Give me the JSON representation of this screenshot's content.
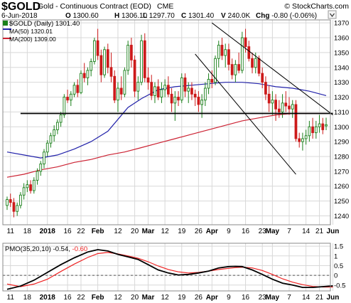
{
  "header": {
    "symbol": "$GOLD",
    "description": "Gold - Continuous Contract (EOD)",
    "exchange": "CME",
    "watermark": "© StockCharts.com",
    "date": "6-Jun-2018",
    "ohlc": [
      {
        "label": "O",
        "value": "1300.60"
      },
      {
        "label": "H",
        "value": "1306.10"
      },
      {
        "label": "L",
        "value": "1297.70"
      },
      {
        "label": "C",
        "value": "1301.40"
      },
      {
        "label": "V",
        "value": "240.0K"
      },
      {
        "label": "Chg",
        "value": "-0.80 (-0.06%)"
      }
    ],
    "dropdown_icon": "chevron-down-icon"
  },
  "legend": {
    "price": "$GOLD (Daily) 1301.40",
    "ma50": "MA(50) 1320.01",
    "ma200": "MA(200) 1309.00"
  },
  "pmo_legend": {
    "label": "PMO(35,20,10) -0.54, ",
    "value": "-0.60"
  },
  "colors": {
    "up_candle": "#1a7f1a",
    "down_candle": "#cc1a1a",
    "ma50": "#2222aa",
    "ma200": "#cc2233",
    "pmo": "#000000",
    "pmo_signal": "#ee2222",
    "grid": "#d8d8d8",
    "frame": "#888888",
    "channel": "#000000",
    "support": "#000000"
  },
  "chart_data": [
    {
      "type": "candlestick",
      "title": "$GOLD (Daily)",
      "ylim": [
        1234,
        1372
      ],
      "y_ticks": [
        1240,
        1250,
        1260,
        1270,
        1280,
        1290,
        1300,
        1310,
        1320,
        1330,
        1340,
        1350,
        1360,
        1370
      ],
      "x_ticks": [
        "11",
        "18",
        "2018",
        "16",
        "22",
        "Feb",
        "12",
        "20",
        "Mar",
        "12",
        "19",
        "26",
        "Apr",
        "9",
        "16",
        "23",
        "May",
        "7",
        "14",
        "21",
        "Jun"
      ],
      "bold_x_ticks": [
        "2018",
        "Feb",
        "Mar",
        "Apr",
        "May",
        "Jun"
      ],
      "grid": true,
      "candles": [
        [
          1247,
          1253,
          1244,
          1251
        ],
        [
          1251,
          1255,
          1246,
          1249
        ],
        [
          1249,
          1252,
          1239,
          1243
        ],
        [
          1243,
          1249,
          1240,
          1247
        ],
        [
          1247,
          1256,
          1245,
          1254
        ],
        [
          1254,
          1262,
          1251,
          1259
        ],
        [
          1259,
          1264,
          1256,
          1261
        ],
        [
          1261,
          1264,
          1255,
          1257
        ],
        [
          1257,
          1266,
          1255,
          1264
        ],
        [
          1264,
          1272,
          1261,
          1270
        ],
        [
          1270,
          1277,
          1267,
          1275
        ],
        [
          1275,
          1285,
          1272,
          1283
        ],
        [
          1283,
          1291,
          1280,
          1289
        ],
        [
          1289,
          1296,
          1286,
          1294
        ],
        [
          1294,
          1301,
          1290,
          1298
        ],
        [
          1298,
          1305,
          1295,
          1303
        ],
        [
          1303,
          1310,
          1300,
          1308
        ],
        [
          1308,
          1322,
          1306,
          1320
        ],
        [
          1320,
          1325,
          1316,
          1318
        ],
        [
          1318,
          1324,
          1314,
          1322
        ],
        [
          1322,
          1330,
          1320,
          1328
        ],
        [
          1328,
          1332,
          1320,
          1323
        ],
        [
          1323,
          1338,
          1322,
          1336
        ],
        [
          1336,
          1343,
          1330,
          1333
        ],
        [
          1333,
          1340,
          1328,
          1338
        ],
        [
          1338,
          1346,
          1334,
          1344
        ],
        [
          1344,
          1360,
          1342,
          1358
        ],
        [
          1358,
          1366,
          1345,
          1348
        ],
        [
          1348,
          1352,
          1330,
          1335
        ],
        [
          1335,
          1354,
          1333,
          1352
        ],
        [
          1352,
          1356,
          1336,
          1340
        ],
        [
          1340,
          1350,
          1330,
          1334
        ],
        [
          1334,
          1338,
          1316,
          1318
        ],
        [
          1318,
          1330,
          1310,
          1326
        ],
        [
          1326,
          1334,
          1318,
          1322
        ],
        [
          1322,
          1340,
          1320,
          1338
        ],
        [
          1338,
          1358,
          1335,
          1355
        ],
        [
          1355,
          1360,
          1340,
          1345
        ],
        [
          1345,
          1348,
          1320,
          1324
        ],
        [
          1324,
          1334,
          1318,
          1330
        ],
        [
          1330,
          1362,
          1328,
          1358
        ],
        [
          1358,
          1363,
          1330,
          1333
        ],
        [
          1333,
          1340,
          1325,
          1330
        ],
        [
          1330,
          1335,
          1318,
          1321
        ],
        [
          1321,
          1330,
          1316,
          1327
        ],
        [
          1327,
          1332,
          1318,
          1320
        ],
        [
          1320,
          1330,
          1316,
          1325
        ],
        [
          1325,
          1332,
          1320,
          1328
        ],
        [
          1328,
          1334,
          1320,
          1322
        ],
        [
          1322,
          1326,
          1310,
          1316
        ],
        [
          1316,
          1324,
          1304,
          1320
        ],
        [
          1320,
          1324,
          1314,
          1318
        ],
        [
          1318,
          1336,
          1316,
          1333
        ],
        [
          1333,
          1336,
          1320,
          1324
        ],
        [
          1324,
          1330,
          1316,
          1326
        ],
        [
          1326,
          1330,
          1318,
          1322
        ],
        [
          1322,
          1325,
          1314,
          1320
        ],
        [
          1320,
          1324,
          1310,
          1315
        ],
        [
          1315,
          1322,
          1306,
          1318
        ],
        [
          1318,
          1330,
          1314,
          1326
        ],
        [
          1326,
          1336,
          1322,
          1332
        ],
        [
          1332,
          1338,
          1326,
          1330
        ],
        [
          1330,
          1348,
          1328,
          1346
        ],
        [
          1346,
          1358,
          1340,
          1355
        ],
        [
          1355,
          1360,
          1345,
          1348
        ],
        [
          1348,
          1356,
          1340,
          1352
        ],
        [
          1352,
          1356,
          1338,
          1342
        ],
        [
          1342,
          1346,
          1332,
          1335
        ],
        [
          1335,
          1345,
          1330,
          1342
        ],
        [
          1342,
          1350,
          1336,
          1338
        ],
        [
          1338,
          1364,
          1336,
          1360
        ],
        [
          1360,
          1366,
          1350,
          1354
        ],
        [
          1354,
          1358,
          1344,
          1346
        ],
        [
          1346,
          1350,
          1336,
          1340
        ],
        [
          1340,
          1350,
          1336,
          1346
        ],
        [
          1346,
          1348,
          1334,
          1336
        ],
        [
          1336,
          1340,
          1326,
          1330
        ],
        [
          1330,
          1334,
          1318,
          1322
        ],
        [
          1322,
          1328,
          1310,
          1316
        ],
        [
          1316,
          1324,
          1308,
          1318
        ],
        [
          1318,
          1322,
          1304,
          1312
        ],
        [
          1312,
          1318,
          1306,
          1310
        ],
        [
          1310,
          1322,
          1306,
          1316
        ],
        [
          1316,
          1324,
          1310,
          1314
        ],
        [
          1314,
          1320,
          1308,
          1312
        ],
        [
          1312,
          1318,
          1306,
          1315
        ],
        [
          1315,
          1318,
          1290,
          1292
        ],
        [
          1292,
          1296,
          1286,
          1290
        ],
        [
          1290,
          1296,
          1284,
          1292
        ],
        [
          1292,
          1298,
          1288,
          1294
        ],
        [
          1294,
          1304,
          1290,
          1300
        ],
        [
          1300,
          1306,
          1292,
          1296
        ],
        [
          1296,
          1304,
          1292,
          1300
        ],
        [
          1300,
          1308,
          1296,
          1302
        ],
        [
          1302,
          1306,
          1295,
          1298
        ],
        [
          1300.6,
          1306.1,
          1297.7,
          1301.4
        ]
      ],
      "ma50": [
        [
          0,
          1283
        ],
        [
          5,
          1281
        ],
        [
          10,
          1279
        ],
        [
          15,
          1281
        ],
        [
          20,
          1285
        ],
        [
          25,
          1290
        ],
        [
          30,
          1297
        ],
        [
          33,
          1305
        ],
        [
          36,
          1313
        ],
        [
          40,
          1319
        ],
        [
          45,
          1325
        ],
        [
          50,
          1327
        ],
        [
          55,
          1328
        ],
        [
          60,
          1329
        ],
        [
          65,
          1330
        ],
        [
          70,
          1330
        ],
        [
          75,
          1329
        ],
        [
          80,
          1327
        ],
        [
          85,
          1326
        ],
        [
          90,
          1324
        ],
        [
          95,
          1321
        ]
      ],
      "ma200": [
        [
          0,
          1266
        ],
        [
          5,
          1268
        ],
        [
          10,
          1271
        ],
        [
          15,
          1273
        ],
        [
          20,
          1276
        ],
        [
          25,
          1278
        ],
        [
          30,
          1281
        ],
        [
          35,
          1283
        ],
        [
          40,
          1286
        ],
        [
          45,
          1289
        ],
        [
          50,
          1292
        ],
        [
          55,
          1295
        ],
        [
          60,
          1298
        ],
        [
          65,
          1301
        ],
        [
          70,
          1304
        ],
        [
          75,
          1306
        ],
        [
          80,
          1308
        ],
        [
          85,
          1309
        ],
        [
          90,
          1309
        ],
        [
          95,
          1309
        ]
      ],
      "support_line": {
        "from": [
          4,
          1309
        ],
        "to": [
          97,
          1309
        ]
      },
      "channel_upper": {
        "from": [
          61,
          1370
        ],
        "to": [
          97,
          1308
        ]
      },
      "channel_lower": {
        "from": [
          56,
          1349
        ],
        "to": [
          86,
          1268
        ]
      }
    },
    {
      "type": "line",
      "title": "PMO(35,20,10)",
      "ylim": [
        -0.8,
        1.65
      ],
      "y_ticks": [
        -0.5,
        0,
        0.5,
        1,
        1.5
      ],
      "zero_line": 0,
      "x_ticks": [
        "11",
        "18",
        "2018",
        "16",
        "22",
        "Feb",
        "12",
        "20",
        "Mar",
        "12",
        "19",
        "26",
        "Apr",
        "9",
        "16",
        "23",
        "May",
        "7",
        "14",
        "21",
        "Jun"
      ],
      "series": [
        {
          "name": "PMO",
          "points": [
            [
              0,
              -0.72
            ],
            [
              4,
              -0.55
            ],
            [
              8,
              -0.25
            ],
            [
              12,
              0.15
            ],
            [
              16,
              0.55
            ],
            [
              20,
              0.9
            ],
            [
              24,
              1.2
            ],
            [
              27,
              1.32
            ],
            [
              30,
              1.25
            ],
            [
              33,
              1.08
            ],
            [
              36,
              0.95
            ],
            [
              39,
              0.82
            ],
            [
              42,
              0.55
            ],
            [
              45,
              0.28
            ],
            [
              48,
              0.12
            ],
            [
              51,
              0.02
            ],
            [
              54,
              0.05
            ],
            [
              57,
              0.12
            ],
            [
              60,
              0.22
            ],
            [
              63,
              0.38
            ],
            [
              66,
              0.45
            ],
            [
              68,
              0.46
            ],
            [
              70,
              0.45
            ],
            [
              73,
              0.28
            ],
            [
              76,
              0.05
            ],
            [
              79,
              -0.2
            ],
            [
              82,
              -0.4
            ],
            [
              85,
              -0.5
            ],
            [
              88,
              -0.62
            ],
            [
              91,
              -0.62
            ],
            [
              94,
              -0.58
            ],
            [
              97,
              -0.54
            ]
          ]
        },
        {
          "name": "Signal",
          "points": [
            [
              0,
              -0.45
            ],
            [
              4,
              -0.58
            ],
            [
              8,
              -0.45
            ],
            [
              12,
              -0.2
            ],
            [
              16,
              0.2
            ],
            [
              20,
              0.58
            ],
            [
              24,
              0.92
            ],
            [
              27,
              1.12
            ],
            [
              30,
              1.18
            ],
            [
              33,
              1.1
            ],
            [
              36,
              1.0
            ],
            [
              39,
              0.88
            ],
            [
              42,
              0.7
            ],
            [
              45,
              0.48
            ],
            [
              48,
              0.3
            ],
            [
              51,
              0.18
            ],
            [
              54,
              0.12
            ],
            [
              57,
              0.15
            ],
            [
              60,
              0.22
            ],
            [
              63,
              0.3
            ],
            [
              66,
              0.36
            ],
            [
              68,
              0.4
            ],
            [
              70,
              0.42
            ],
            [
              73,
              0.38
            ],
            [
              76,
              0.25
            ],
            [
              79,
              0.05
            ],
            [
              82,
              -0.18
            ],
            [
              85,
              -0.35
            ],
            [
              88,
              -0.48
            ],
            [
              91,
              -0.57
            ],
            [
              94,
              -0.6
            ],
            [
              97,
              -0.6
            ]
          ]
        }
      ]
    }
  ]
}
